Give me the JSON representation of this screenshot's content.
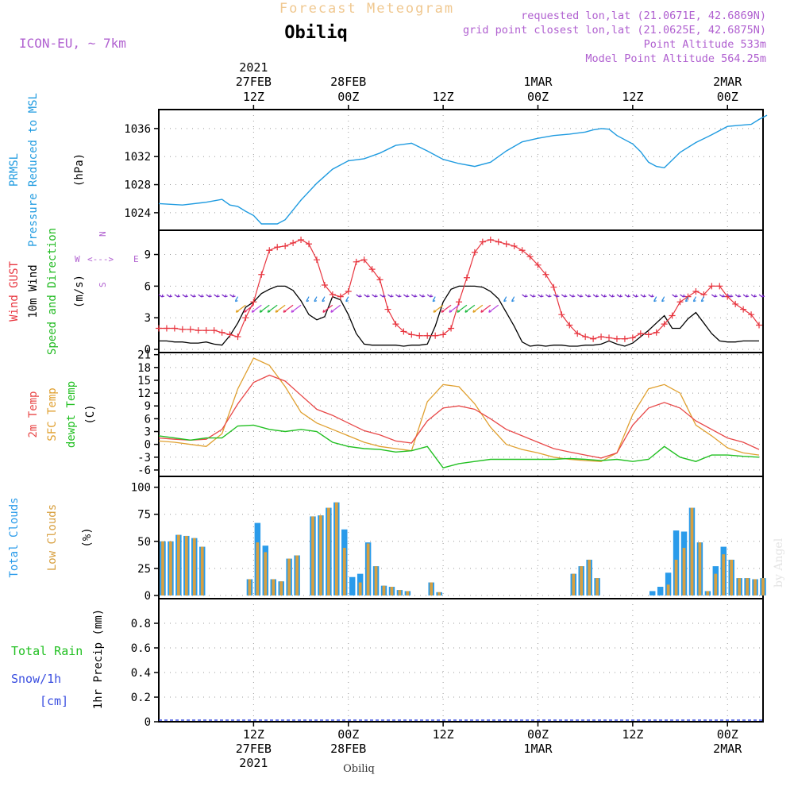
{
  "header": {
    "subtitle": "Forecast Meteogram",
    "location": "Obiliq",
    "model": "ICON-EU, ~ 7km",
    "requested": "requested lon,lat (21.0671E, 42.6869N)",
    "gridpoint": "grid point closest lon,lat (21.0625E, 42.6875N)",
    "point_alt": "Point Altitude 533m",
    "model_alt": "Model Point Altitude 564.25m",
    "credit": "by Angel",
    "footer": "Obiliq"
  },
  "colors": {
    "pressure": "#1f9be0",
    "gust": "#e8353f",
    "wind": "#000000",
    "dir": "#22bb22",
    "temp": "#e84848",
    "sfc": "#e0a030",
    "dewpt": "#22c022",
    "total_clouds": "#2a9bea",
    "low_clouds": "#d8a040",
    "rain": "#22c022",
    "snow": "#3a4ee0",
    "meta": "#b060d0",
    "subtitle": "#f0c890",
    "compass": "#b060d0"
  },
  "time_axis": {
    "top_year": "2021",
    "ticks": [
      {
        "h": 12,
        "top": "27FEB",
        "top2": "12Z",
        "bottom": "12Z",
        "bottom2": "27FEB",
        "bottom3": "2021"
      },
      {
        "h": 24,
        "top": "28FEB",
        "top2": "00Z",
        "bottom": "00Z",
        "bottom2": "28FEB",
        "bottom3": ""
      },
      {
        "h": 36,
        "top": "",
        "top2": "12Z",
        "bottom": "12Z",
        "bottom2": "",
        "bottom3": ""
      },
      {
        "h": 48,
        "top": "1MAR",
        "top2": "00Z",
        "bottom": "00Z",
        "bottom2": "1MAR",
        "bottom3": ""
      },
      {
        "h": 60,
        "top": "",
        "top2": "12Z",
        "bottom": "12Z",
        "bottom2": "",
        "bottom3": ""
      },
      {
        "h": 72,
        "top": "2MAR",
        "top2": "00Z",
        "bottom": "00Z",
        "bottom2": "2MAR",
        "bottom3": ""
      }
    ],
    "start_hour": 0,
    "end_hour": 76.5
  },
  "labels": {
    "p1": [
      "PRMSL",
      "Pressure Reduced to MSL",
      "(hPa)"
    ],
    "p2": [
      "Wind GUST",
      "10m Wind",
      "Speed and Direction",
      "(m/s)"
    ],
    "p3": [
      "2m Temp",
      "SFC Temp",
      "dewpt Temp",
      "(C)"
    ],
    "p4": [
      "Total Clouds",
      "Low Clouds",
      "(%)"
    ],
    "p5": [
      "Total Rain",
      "Snow/1h",
      "[cm]",
      "1hr Precip (mm)"
    ],
    "compass": {
      "w": "W",
      "e": "E",
      "n": "N",
      "s": "S"
    }
  },
  "chart_data": [
    {
      "type": "line",
      "title": "PRMSL Pressure Reduced to MSL",
      "ylabel": "(hPa)",
      "ylim": [
        1021.5,
        1038.7
      ],
      "yticks": [
        1024,
        1028,
        1032,
        1036
      ],
      "x": [
        0,
        3,
        6,
        8,
        9,
        10,
        11,
        12,
        13,
        14,
        15,
        16,
        17,
        18,
        20,
        22,
        24,
        26,
        28,
        30,
        32,
        34,
        36,
        38,
        40,
        42,
        44,
        46,
        48,
        50,
        52,
        54,
        55,
        56,
        57,
        58,
        60,
        61,
        62,
        63,
        64,
        66,
        68,
        70,
        72,
        74,
        75,
        76,
        77
      ],
      "series": [
        {
          "name": "PRMSL",
          "values": [
            1025.3,
            1025.1,
            1025.5,
            1025.9,
            1025.1,
            1024.9,
            1024.2,
            1023.6,
            1022.4,
            1022.4,
            1022.4,
            1023.0,
            1024.4,
            1025.8,
            1028.2,
            1030.2,
            1031.4,
            1031.7,
            1032.5,
            1033.6,
            1033.9,
            1032.8,
            1031.6,
            1031.0,
            1030.6,
            1031.2,
            1032.8,
            1034.1,
            1034.6,
            1035.0,
            1035.2,
            1035.5,
            1035.8,
            1036.0,
            1035.9,
            1035.0,
            1033.8,
            1032.7,
            1031.2,
            1030.6,
            1030.4,
            1032.6,
            1034.0,
            1035.1,
            1036.3,
            1036.5,
            1036.6,
            1037.3,
            1037.9
          ]
        }
      ]
    },
    {
      "type": "line",
      "title": "Wind GUST / 10m Wind Speed and Direction",
      "ylabel": "(m/s)",
      "ylim": [
        -0.3,
        11.3
      ],
      "yticks": [
        0,
        3,
        6,
        9
      ],
      "x": [
        0,
        1,
        2,
        3,
        4,
        5,
        6,
        7,
        8,
        9,
        10,
        11,
        12,
        13,
        14,
        15,
        16,
        17,
        18,
        19,
        20,
        21,
        22,
        23,
        24,
        25,
        26,
        27,
        28,
        29,
        30,
        31,
        32,
        33,
        34,
        35,
        36,
        37,
        38,
        39,
        40,
        41,
        42,
        43,
        44,
        45,
        46,
        47,
        48,
        49,
        50,
        51,
        52,
        53,
        54,
        55,
        56,
        57,
        58,
        59,
        60,
        61,
        62,
        63,
        64,
        65,
        66,
        67,
        68,
        69,
        70,
        71,
        72,
        73,
        74,
        75,
        76
      ],
      "series": [
        {
          "name": "Wind GUST",
          "values": [
            2.0,
            2.0,
            2.0,
            1.9,
            1.9,
            1.8,
            1.8,
            1.8,
            1.6,
            1.4,
            1.2,
            3.0,
            4.5,
            7.1,
            9.4,
            9.7,
            9.8,
            10.1,
            10.4,
            10.0,
            8.5,
            6.1,
            5.2,
            5.0,
            5.5,
            8.3,
            8.5,
            7.6,
            6.6,
            3.8,
            2.4,
            1.7,
            1.4,
            1.3,
            1.3,
            1.3,
            1.4,
            2.0,
            4.5,
            6.8,
            9.2,
            10.2,
            10.4,
            10.2,
            10.0,
            9.8,
            9.4,
            8.8,
            8.0,
            7.1,
            5.9,
            3.3,
            2.3,
            1.5,
            1.2,
            1.0,
            1.2,
            1.1,
            1.0,
            1.0,
            1.1,
            1.5,
            1.4,
            1.6,
            2.4,
            3.2,
            4.5,
            5.0,
            5.5,
            5.2,
            6.0,
            6.0,
            5.0,
            4.3,
            3.8,
            3.3,
            2.3
          ]
        },
        {
          "name": "10m Wind",
          "values": [
            0.8,
            0.8,
            0.7,
            0.7,
            0.6,
            0.6,
            0.7,
            0.5,
            0.4,
            1.3,
            2.5,
            4.0,
            4.5,
            5.3,
            5.7,
            6.0,
            6.0,
            5.6,
            4.6,
            3.3,
            2.8,
            3.1,
            5.0,
            4.7,
            3.3,
            1.5,
            0.5,
            0.4,
            0.4,
            0.4,
            0.4,
            0.3,
            0.4,
            0.4,
            0.5,
            2.2,
            4.5,
            5.7,
            6.0,
            6.0,
            6.0,
            5.9,
            5.5,
            4.8,
            3.5,
            2.2,
            0.7,
            0.3,
            0.4,
            0.3,
            0.4,
            0.4,
            0.3,
            0.3,
            0.4,
            0.4,
            0.5,
            0.8,
            0.5,
            0.3,
            0.6,
            1.2,
            1.8,
            2.5,
            3.2,
            2.0,
            2.0,
            2.9,
            3.5,
            2.5,
            1.5,
            0.8,
            0.7,
            0.7,
            0.8,
            0.8,
            0.8
          ]
        }
      ]
    },
    {
      "type": "line",
      "title": "2m Temp / SFC Temp / dewpt Temp",
      "ylabel": "(C)",
      "ylim": [
        -7.5,
        21.5
      ],
      "yticks": [
        -6,
        -3,
        0,
        3,
        6,
        9,
        12,
        15,
        18,
        21
      ],
      "x": [
        0,
        2,
        4,
        6,
        8,
        10,
        12,
        14,
        16,
        18,
        20,
        22,
        24,
        26,
        28,
        30,
        32,
        34,
        36,
        38,
        40,
        42,
        44,
        46,
        48,
        50,
        52,
        54,
        56,
        58,
        60,
        62,
        64,
        66,
        68,
        70,
        72,
        74,
        76
      ],
      "series": [
        {
          "name": "2m Temp",
          "values": [
            1.5,
            1.2,
            1.0,
            1.2,
            3.5,
            9.5,
            14.5,
            16.2,
            14.8,
            11.5,
            8.2,
            6.8,
            5.0,
            3.2,
            2.2,
            0.8,
            0.3,
            5.5,
            8.5,
            9.0,
            8.2,
            6.0,
            3.5,
            2.0,
            0.5,
            -1.0,
            -1.8,
            -2.5,
            -3.2,
            -2.0,
            4.5,
            8.5,
            9.8,
            8.5,
            5.5,
            3.5,
            1.5,
            0.5,
            -1.2
          ]
        },
        {
          "name": "SFC Temp",
          "values": [
            0.8,
            0.5,
            0.0,
            -0.5,
            2.5,
            13.0,
            20.2,
            18.5,
            13.5,
            7.5,
            5.0,
            3.5,
            2.0,
            0.5,
            -0.5,
            -1.0,
            -1.5,
            10.0,
            14.0,
            13.5,
            9.5,
            4.0,
            0.0,
            -1.2,
            -2.0,
            -3.0,
            -3.5,
            -3.8,
            -4.0,
            -2.0,
            7.0,
            13.0,
            14.0,
            12.0,
            4.5,
            2.0,
            -0.8,
            -2.0,
            -2.5
          ]
        },
        {
          "name": "dewpt Temp",
          "values": [
            2.0,
            1.5,
            1.0,
            1.5,
            1.5,
            4.3,
            4.5,
            3.5,
            3.0,
            3.5,
            3.0,
            0.5,
            -0.5,
            -1.0,
            -1.2,
            -1.8,
            -1.5,
            -0.5,
            -5.5,
            -4.5,
            -4.0,
            -3.5,
            -3.5,
            -3.5,
            -3.5,
            -3.5,
            -3.3,
            -3.5,
            -3.8,
            -3.5,
            -4.0,
            -3.5,
            -0.5,
            -3.0,
            -4.0,
            -2.5,
            -2.5,
            -2.8,
            -3.0
          ]
        }
      ]
    },
    {
      "type": "bar",
      "title": "Total Clouds / Low Clouds",
      "ylabel": "(%)",
      "ylim": [
        -3,
        110
      ],
      "yticks": [
        0,
        25,
        50,
        75,
        100
      ],
      "x": [
        0,
        1,
        2,
        3,
        4,
        5,
        6,
        7,
        8,
        9,
        10,
        11,
        12,
        13,
        14,
        15,
        16,
        17,
        18,
        19,
        20,
        21,
        22,
        23,
        24,
        25,
        26,
        27,
        28,
        29,
        30,
        31,
        32,
        33,
        34,
        35,
        36,
        37,
        38,
        39,
        40,
        41,
        42,
        43,
        44,
        45,
        46,
        47,
        48,
        49,
        50,
        51,
        52,
        53,
        54,
        55,
        56,
        57,
        58,
        59,
        60,
        61,
        62,
        63,
        64,
        65,
        66,
        67,
        68,
        69,
        70,
        71,
        72,
        73,
        74,
        75,
        76
      ],
      "series": [
        {
          "name": "Total Clouds",
          "values": [
            50,
            50,
            56,
            55,
            53,
            45,
            0,
            0,
            0,
            0,
            0,
            15,
            67,
            46,
            15,
            13,
            34,
            37,
            0,
            73,
            74,
            81,
            86,
            61,
            17,
            20,
            49,
            27,
            9,
            8,
            5,
            4,
            0,
            0,
            12,
            3,
            0,
            0,
            0,
            0,
            0,
            0,
            0,
            0,
            0,
            0,
            0,
            0,
            0,
            0,
            0,
            0,
            20,
            27,
            33,
            16,
            0,
            0,
            0,
            0,
            0,
            0,
            4,
            8,
            21,
            60,
            59,
            81,
            49,
            4,
            27,
            45,
            33,
            16,
            16,
            15,
            16
          ]
        },
        {
          "name": "Low Clouds",
          "values": [
            50,
            50,
            56,
            55,
            53,
            45,
            0,
            0,
            0,
            0,
            0,
            15,
            49,
            40,
            15,
            13,
            34,
            37,
            0,
            73,
            74,
            81,
            86,
            44,
            0,
            12,
            48,
            27,
            9,
            8,
            5,
            4,
            0,
            0,
            12,
            3,
            0,
            0,
            0,
            0,
            0,
            0,
            0,
            0,
            0,
            0,
            0,
            0,
            0,
            0,
            0,
            0,
            20,
            27,
            33,
            16,
            0,
            0,
            0,
            0,
            0,
            0,
            0,
            0,
            10,
            33,
            44,
            81,
            49,
            4,
            20,
            38,
            33,
            16,
            16,
            15,
            16
          ]
        }
      ]
    },
    {
      "type": "bar",
      "title": "Total Rain / Snow",
      "ylabel": "1hr Precip (mm)",
      "ylim": [
        0,
        1.0
      ],
      "yticks": [
        0,
        0.2,
        0.4,
        0.6,
        0.8
      ],
      "series": [
        {
          "name": "Total Rain",
          "values": []
        },
        {
          "name": "Snow/1h",
          "values": []
        }
      ]
    }
  ]
}
